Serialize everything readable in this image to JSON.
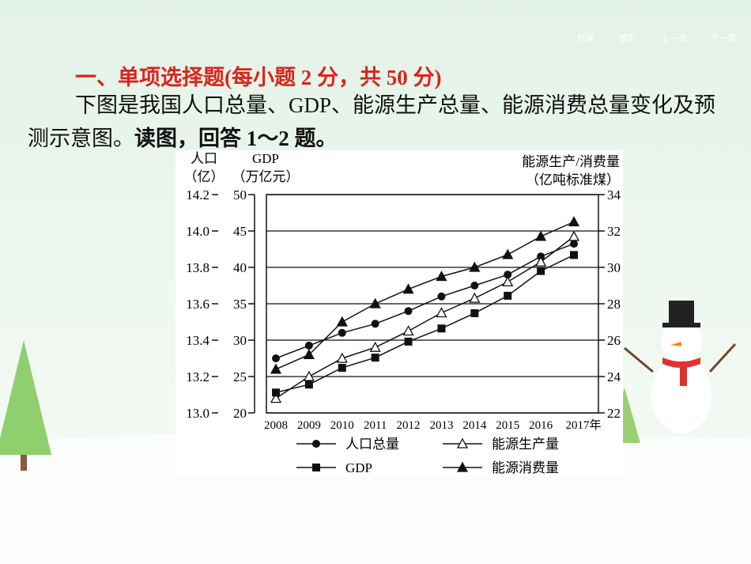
{
  "nav": [
    "目录",
    "首页",
    "上一页",
    "下一页"
  ],
  "heading": {
    "label": "一、单项选择题",
    "note": "(每小题 2 分，共 50 分)"
  },
  "question": {
    "intro": "下图是我国人口总量、GDP、能源生产总量、能源消费总量变化及预测示意图。",
    "instruction": "读图，回答 1～2 题。"
  },
  "chart_data": {
    "type": "line",
    "y_label": [
      "人口",
      "（亿）"
    ],
    "y2_label": [
      "GDP",
      "（万亿元）"
    ],
    "y3_label": [
      "能源生产/消费量",
      "（亿吨标准煤）"
    ],
    "categories": [
      "2008",
      "2009",
      "2010",
      "2011",
      "2012",
      "2013",
      "2014",
      "2015",
      "2016",
      "2017年"
    ],
    "ylim": [
      13.0,
      14.2
    ],
    "yticks": [
      {
        "value": 13.0,
        "label": "13.0"
      },
      {
        "value": 13.2,
        "label": "13.2"
      },
      {
        "value": 13.4,
        "label": "13.4"
      },
      {
        "value": 13.6,
        "label": "13.6"
      },
      {
        "value": 13.8,
        "label": "13.8"
      },
      {
        "value": 14.0,
        "label": "14.0"
      },
      {
        "value": 14.2,
        "label": "14.2"
      }
    ],
    "y2lim": [
      20,
      50
    ],
    "y2ticks": [
      20,
      25,
      30,
      35,
      40,
      45,
      50
    ],
    "y3lim": [
      22,
      34
    ],
    "y3ticks": [
      22,
      24,
      26,
      28,
      30,
      32,
      34
    ],
    "grid": true,
    "series": [
      {
        "name": "人口总量",
        "color": "#111111",
        "marker": "circle",
        "axis": "y",
        "values": [
          13.3,
          13.37,
          13.44,
          13.49,
          13.56,
          13.64,
          13.7,
          13.76,
          13.86,
          13.93
        ]
      },
      {
        "name": "能源生产量",
        "color": "#111111",
        "marker": "triangle-open",
        "axis": "y3",
        "values": [
          22.8,
          24.0,
          25.0,
          25.6,
          26.5,
          27.5,
          28.3,
          29.2,
          30.3,
          31.7
        ]
      },
      {
        "name": "GDP",
        "color": "#111111",
        "marker": "square",
        "axis": "y2",
        "values": [
          22.8,
          23.9,
          26.2,
          27.6,
          29.8,
          31.6,
          33.7,
          36.1,
          39.5,
          41.7
        ]
      },
      {
        "name": "能源消费量",
        "color": "#111111",
        "marker": "triangle",
        "axis": "y3",
        "values": [
          24.4,
          25.2,
          27.0,
          28.0,
          28.8,
          29.5,
          30.0,
          30.7,
          31.7,
          32.5
        ]
      }
    ]
  }
}
